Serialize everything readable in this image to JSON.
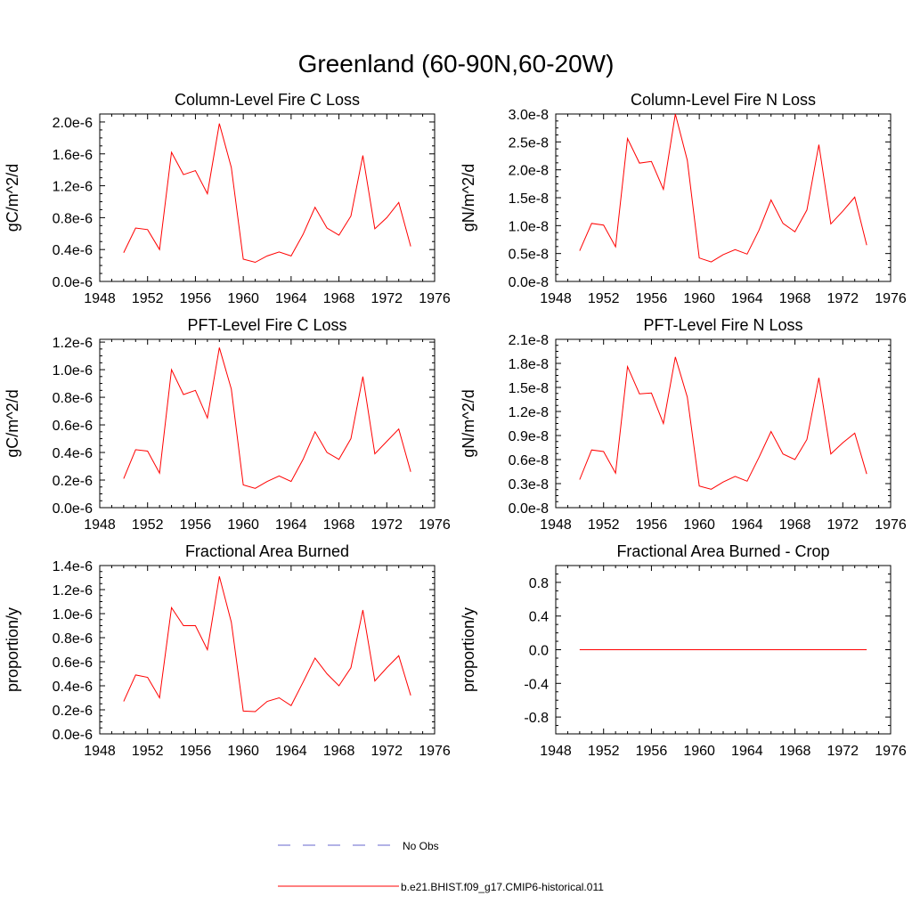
{
  "figure": {
    "title": "Greenland (60-90N,60-20W)",
    "line_color": "#ff0000",
    "obs_color": "#6666cc"
  },
  "legend": {
    "obs_label": "No Obs",
    "model_label": "b.e21.BHIST.f09_g17.CMIP6-historical.011"
  },
  "chart_data": [
    {
      "id": "col-fire-c",
      "type": "line",
      "title": "Column-Level Fire C Loss",
      "ylabel": "gC/m^2/d",
      "xlim": [
        1948,
        1976
      ],
      "ylim": [
        0.0,
        2.1e-06
      ],
      "yticks": [
        0.0,
        4e-07,
        8e-07,
        1.2e-06,
        1.6e-06,
        2e-06
      ],
      "ytick_labels": [
        "0.0e-6",
        "0.4e-6",
        "0.8e-6",
        "1.2e-6",
        "1.6e-6",
        "2.0e-6"
      ],
      "xticks": [
        1948,
        1952,
        1956,
        1960,
        1964,
        1968,
        1972,
        1976
      ],
      "x": [
        1950,
        1951,
        1952,
        1953,
        1954,
        1955,
        1956,
        1957,
        1958,
        1959,
        1960,
        1961,
        1962,
        1963,
        1964,
        1965,
        1966,
        1967,
        1968,
        1969,
        1970,
        1971,
        1972,
        1973,
        1974
      ],
      "series": [
        {
          "values": [
            3.6e-07,
            6.7e-07,
            6.5e-07,
            4e-07,
            1.62e-06,
            1.34e-06,
            1.39e-06,
            1.1e-06,
            1.98e-06,
            1.43e-06,
            2.8e-07,
            2.4e-07,
            3.2e-07,
            3.7e-07,
            3.2e-07,
            5.9e-07,
            9.3e-07,
            6.7e-07,
            5.8e-07,
            8.2e-07,
            1.58e-06,
            6.6e-07,
            8e-07,
            9.9e-07,
            4.4e-07
          ]
        }
      ]
    },
    {
      "id": "col-fire-n",
      "type": "line",
      "title": "Column-Level Fire N Loss",
      "ylabel": "gN/m^2/d",
      "xlim": [
        1948,
        1976
      ],
      "ylim": [
        0.0,
        3e-08
      ],
      "yticks": [
        0.0,
        5e-09,
        1e-08,
        1.5e-08,
        2e-08,
        2.5e-08,
        3e-08
      ],
      "ytick_labels": [
        "0.0e-8",
        "0.5e-8",
        "1.0e-8",
        "1.5e-8",
        "2.0e-8",
        "2.5e-8",
        "3.0e-8"
      ],
      "xticks": [
        1948,
        1952,
        1956,
        1960,
        1964,
        1968,
        1972,
        1976
      ],
      "x": [
        1950,
        1951,
        1952,
        1953,
        1954,
        1955,
        1956,
        1957,
        1958,
        1959,
        1960,
        1961,
        1962,
        1963,
        1964,
        1965,
        1966,
        1967,
        1968,
        1969,
        1970,
        1971,
        1972,
        1973,
        1974
      ],
      "series": [
        {
          "values": [
            5.5e-09,
            1.04e-08,
            1.01e-08,
            6.2e-09,
            2.56e-08,
            2.12e-08,
            2.15e-08,
            1.65e-08,
            3e-08,
            2.17e-08,
            4.2e-09,
            3.5e-09,
            4.8e-09,
            5.7e-09,
            4.9e-09,
            9.2e-09,
            1.46e-08,
            1.04e-08,
            8.9e-09,
            1.28e-08,
            2.45e-08,
            1.03e-08,
            1.26e-08,
            1.51e-08,
            6.5e-09
          ]
        }
      ]
    },
    {
      "id": "pft-fire-c",
      "type": "line",
      "title": "PFT-Level Fire C Loss",
      "ylabel": "gC/m^2/d",
      "xlim": [
        1948,
        1976
      ],
      "ylim": [
        0.0,
        1.22e-06
      ],
      "yticks": [
        0.0,
        2e-07,
        4e-07,
        6e-07,
        8e-07,
        1e-06,
        1.2e-06
      ],
      "ytick_labels": [
        "0.0e-6",
        "0.2e-6",
        "0.4e-6",
        "0.6e-6",
        "0.8e-6",
        "1.0e-6",
        "1.2e-6"
      ],
      "xticks": [
        1948,
        1952,
        1956,
        1960,
        1964,
        1968,
        1972,
        1976
      ],
      "x": [
        1950,
        1951,
        1952,
        1953,
        1954,
        1955,
        1956,
        1957,
        1958,
        1959,
        1960,
        1961,
        1962,
        1963,
        1964,
        1965,
        1966,
        1967,
        1968,
        1969,
        1970,
        1971,
        1972,
        1973,
        1974
      ],
      "series": [
        {
          "values": [
            2.1e-07,
            4.2e-07,
            4.1e-07,
            2.5e-07,
            1e-06,
            8.2e-07,
            8.5e-07,
            6.5e-07,
            1.16e-06,
            8.6e-07,
            1.65e-07,
            1.4e-07,
            1.9e-07,
            2.3e-07,
            1.9e-07,
            3.5e-07,
            5.5e-07,
            4e-07,
            3.5e-07,
            5e-07,
            9.5e-07,
            3.9e-07,
            4.8e-07,
            5.7e-07,
            2.6e-07
          ]
        }
      ]
    },
    {
      "id": "pft-fire-n",
      "type": "line",
      "title": "PFT-Level Fire N Loss",
      "ylabel": "gN/m^2/d",
      "xlim": [
        1948,
        1976
      ],
      "ylim": [
        0.0,
        2.1e-08
      ],
      "yticks": [
        0.0,
        3e-09,
        6e-09,
        9e-09,
        1.2e-08,
        1.5e-08,
        1.8e-08,
        2.1e-08
      ],
      "ytick_labels": [
        "0.0e-8",
        "0.3e-8",
        "0.6e-8",
        "0.9e-8",
        "1.2e-8",
        "1.5e-8",
        "1.8e-8",
        "2.1e-8"
      ],
      "xticks": [
        1948,
        1952,
        1956,
        1960,
        1964,
        1968,
        1972,
        1976
      ],
      "x": [
        1950,
        1951,
        1952,
        1953,
        1954,
        1955,
        1956,
        1957,
        1958,
        1959,
        1960,
        1961,
        1962,
        1963,
        1964,
        1965,
        1966,
        1967,
        1968,
        1969,
        1970,
        1971,
        1972,
        1973,
        1974
      ],
      "series": [
        {
          "values": [
            3.5e-09,
            7.2e-09,
            7e-09,
            4.3e-09,
            1.76e-08,
            1.42e-08,
            1.43e-08,
            1.05e-08,
            1.88e-08,
            1.38e-08,
            2.7e-09,
            2.3e-09,
            3.2e-09,
            3.9e-09,
            3.3e-09,
            6.3e-09,
            9.5e-09,
            6.7e-09,
            6e-09,
            8.5e-09,
            1.62e-08,
            6.7e-09,
            8.1e-09,
            9.3e-09,
            4.2e-09
          ]
        }
      ]
    },
    {
      "id": "frac-area",
      "type": "line",
      "title": "Fractional Area Burned",
      "ylabel": "proportion/y",
      "xlim": [
        1948,
        1976
      ],
      "ylim": [
        0.0,
        1.4e-06
      ],
      "yticks": [
        0.0,
        2e-07,
        4e-07,
        6e-07,
        8e-07,
        1e-06,
        1.2e-06,
        1.4e-06
      ],
      "ytick_labels": [
        "0.0e-6",
        "0.2e-6",
        "0.4e-6",
        "0.6e-6",
        "0.8e-6",
        "1.0e-6",
        "1.2e-6",
        "1.4e-6"
      ],
      "xticks": [
        1948,
        1952,
        1956,
        1960,
        1964,
        1968,
        1972,
        1976
      ],
      "x": [
        1950,
        1951,
        1952,
        1953,
        1954,
        1955,
        1956,
        1957,
        1958,
        1959,
        1960,
        1961,
        1962,
        1963,
        1964,
        1965,
        1966,
        1967,
        1968,
        1969,
        1970,
        1971,
        1972,
        1973,
        1974
      ],
      "series": [
        {
          "values": [
            2.7e-07,
            4.9e-07,
            4.7e-07,
            3e-07,
            1.05e-06,
            9e-07,
            9e-07,
            7e-07,
            1.31e-06,
            9.3e-07,
            1.9e-07,
            1.85e-07,
            2.7e-07,
            3e-07,
            2.35e-07,
            4.3e-07,
            6.3e-07,
            5e-07,
            4e-07,
            5.5e-07,
            1.03e-06,
            4.4e-07,
            5.5e-07,
            6.5e-07,
            3.2e-07
          ]
        }
      ]
    },
    {
      "id": "frac-area-crop",
      "type": "line",
      "title": "Fractional Area Burned - Crop",
      "ylabel": "proportion/y",
      "xlim": [
        1948,
        1976
      ],
      "ylim": [
        -1.0,
        1.0
      ],
      "yticks": [
        -0.8,
        -0.4,
        0.0,
        0.4,
        0.8
      ],
      "ytick_labels": [
        "-0.8",
        "-0.4",
        "0.0",
        "0.4",
        "0.8"
      ],
      "xticks": [
        1948,
        1952,
        1956,
        1960,
        1964,
        1968,
        1972,
        1976
      ],
      "x": [
        1950,
        1951,
        1952,
        1953,
        1954,
        1955,
        1956,
        1957,
        1958,
        1959,
        1960,
        1961,
        1962,
        1963,
        1964,
        1965,
        1966,
        1967,
        1968,
        1969,
        1970,
        1971,
        1972,
        1973,
        1974
      ],
      "series": [
        {
          "values": [
            0,
            0,
            0,
            0,
            0,
            0,
            0,
            0,
            0,
            0,
            0,
            0,
            0,
            0,
            0,
            0,
            0,
            0,
            0,
            0,
            0,
            0,
            0,
            0,
            0
          ]
        }
      ]
    }
  ]
}
